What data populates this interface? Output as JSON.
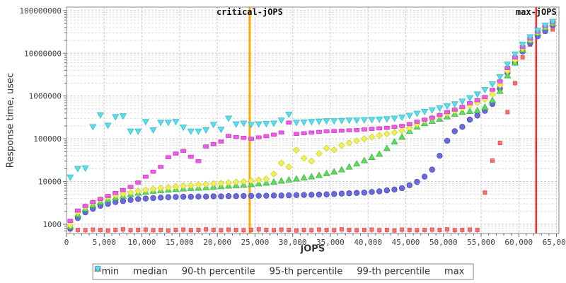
{
  "chart_data": {
    "type": "scatter",
    "title": "",
    "xlabel": "jOPS",
    "ylabel": "Response time, usec",
    "legend_position": "bottom",
    "x_axis": {
      "min": 0,
      "max": 65350,
      "major_tick": 5000,
      "minor_tick": 1000,
      "tick_labels": [
        "0",
        "5,000",
        "10,000",
        "15,000",
        "20,000",
        "25,000",
        "30,000",
        "35,000",
        "40,000",
        "45,000",
        "50,000",
        "55,000",
        "60,000",
        "65,000"
      ]
    },
    "y_axis": {
      "scale": "log",
      "min": 610,
      "max": 120000000,
      "grid": "dashed",
      "tick_labels": [
        "1000",
        "10000",
        "100000",
        "1000000",
        "10000000",
        "100000000"
      ]
    },
    "annotations": [
      {
        "label": "critical-jOPS",
        "x": 24300,
        "color": "#f2ad00"
      },
      {
        "label": "max-jOPS",
        "x": 62300,
        "color": "#e82c2c"
      }
    ],
    "x": [
      500,
      1500,
      2500,
      3500,
      4500,
      5500,
      6500,
      7500,
      8500,
      9500,
      10500,
      11500,
      12500,
      13500,
      14500,
      15500,
      16500,
      17500,
      18500,
      19500,
      20500,
      21500,
      22500,
      23500,
      24500,
      25500,
      26500,
      27500,
      28500,
      29500,
      30500,
      31500,
      32500,
      33500,
      34500,
      35500,
      36500,
      37500,
      38500,
      39500,
      40500,
      41500,
      42500,
      43500,
      44500,
      45500,
      46500,
      47500,
      48500,
      49500,
      50500,
      51500,
      52500,
      53500,
      54500,
      55500,
      56500,
      57500,
      58500,
      59500,
      60500,
      61500,
      62500,
      63500,
      64500
    ],
    "series": [
      {
        "name": "min",
        "marker": "square-stem",
        "color": "#f76f6f",
        "stroke": "#e05252",
        "values": [
          760,
          740,
          730,
          750,
          740,
          720,
          740,
          760,
          730,
          740,
          750,
          730,
          740,
          720,
          740,
          750,
          730,
          740,
          760,
          740,
          730,
          750,
          740,
          730,
          740,
          760,
          740,
          730,
          750,
          740,
          720,
          740,
          730,
          750,
          740,
          730,
          760,
          740,
          730,
          740,
          750,
          730,
          740,
          720,
          750,
          740,
          730,
          740,
          750,
          740,
          760,
          730,
          740,
          750,
          740,
          5500,
          31000,
          80000,
          420000,
          2000000,
          8000000,
          16000000,
          26000000,
          32000000,
          36000000
        ]
      },
      {
        "name": "median",
        "marker": "circle",
        "color": "#6a6ada",
        "stroke": "#4a4ac0",
        "values": [
          800,
          1400,
          1900,
          2300,
          2700,
          3000,
          3300,
          3500,
          3700,
          3900,
          4000,
          4100,
          4200,
          4300,
          4350,
          4400,
          4400,
          4450,
          4450,
          4500,
          4500,
          4550,
          4550,
          4600,
          4600,
          4650,
          4650,
          4700,
          4700,
          4750,
          4800,
          4850,
          4900,
          4950,
          5000,
          5100,
          5200,
          5300,
          5400,
          5500,
          5700,
          5900,
          6200,
          6500,
          7000,
          8200,
          9800,
          13000,
          19000,
          40000,
          90000,
          150000,
          190000,
          280000,
          350000,
          450000,
          650000,
          1500000,
          3500000,
          6000000,
          11000000,
          17000000,
          25000000,
          33000000,
          45000000
        ]
      },
      {
        "name": "90-th percentile",
        "marker": "triangle-up",
        "color": "#5fdc5f",
        "stroke": "#3cb83c",
        "values": [
          900,
          1700,
          2300,
          2800,
          3300,
          3800,
          4200,
          4600,
          5000,
          5400,
          5700,
          6000,
          6200,
          6400,
          6600,
          6800,
          7000,
          7100,
          7300,
          7500,
          7700,
          7900,
          8100,
          8300,
          8600,
          8900,
          9300,
          9800,
          10400,
          11000,
          11600,
          12300,
          13000,
          14000,
          15500,
          17000,
          19000,
          22000,
          26000,
          31000,
          37000,
          44000,
          60000,
          85000,
          110000,
          150000,
          190000,
          230000,
          260000,
          290000,
          330000,
          380000,
          420000,
          440000,
          460000,
          550000,
          800000,
          1300000,
          3000000,
          6000000,
          12000000,
          20000000,
          30000000,
          40000000,
          50000000
        ]
      },
      {
        "name": "95-th percentile",
        "marker": "diamond",
        "color": "#efef5a",
        "stroke": "#d2d22e",
        "values": [
          950,
          1900,
          2600,
          3200,
          3800,
          4300,
          4800,
          5200,
          5600,
          6000,
          6400,
          6700,
          7000,
          7300,
          7600,
          7900,
          8100,
          8400,
          8600,
          8900,
          9100,
          9400,
          9700,
          10000,
          10400,
          10900,
          11500,
          15000,
          27000,
          22000,
          54000,
          35000,
          30000,
          45000,
          60000,
          55000,
          70000,
          80000,
          90000,
          100000,
          110000,
          120000,
          130000,
          140000,
          155000,
          180000,
          220000,
          270000,
          310000,
          350000,
          390000,
          450000,
          520000,
          600000,
          700000,
          850000,
          1100000,
          1800000,
          3800000,
          7000000,
          13000000,
          21000000,
          31000000,
          42000000,
          52000000
        ]
      },
      {
        "name": "99-th percentile",
        "marker": "hbar",
        "color": "#ee5ce4",
        "stroke": "#cc3ec2",
        "values": [
          1200,
          2100,
          2700,
          3300,
          3900,
          4600,
          5400,
          6300,
          7500,
          9500,
          13000,
          17000,
          22000,
          37000,
          45000,
          52000,
          38000,
          30000,
          66000,
          75000,
          86000,
          117000,
          110000,
          105000,
          100000,
          108000,
          115000,
          125000,
          140000,
          240000,
          130000,
          135000,
          140000,
          145000,
          150000,
          152000,
          155000,
          158000,
          160000,
          165000,
          170000,
          175000,
          180000,
          190000,
          200000,
          220000,
          250000,
          280000,
          310000,
          360000,
          420000,
          480000,
          560000,
          680000,
          800000,
          950000,
          1400000,
          2200000,
          4500000,
          8000000,
          14000000,
          22000000,
          32000000,
          43000000,
          53000000
        ]
      },
      {
        "name": "max",
        "marker": "triangle-down",
        "color": "#5cdde8",
        "stroke": "#35bcd0",
        "values": [
          12600,
          20000,
          20500,
          190000,
          360000,
          205000,
          325000,
          340000,
          150000,
          150000,
          250000,
          160000,
          240000,
          240000,
          250000,
          185000,
          150000,
          150000,
          160000,
          215000,
          165000,
          300000,
          220000,
          230000,
          215000,
          220000,
          225000,
          230000,
          270000,
          370000,
          240000,
          245000,
          250000,
          255000,
          260000,
          260000,
          265000,
          270000,
          270000,
          275000,
          280000,
          285000,
          290000,
          300000,
          320000,
          350000,
          390000,
          430000,
          470000,
          520000,
          580000,
          650000,
          750000,
          900000,
          1100000,
          1400000,
          1900000,
          2800000,
          5500000,
          9500000,
          16000000,
          24000000,
          34000000,
          45000000,
          55000000
        ]
      }
    ]
  }
}
